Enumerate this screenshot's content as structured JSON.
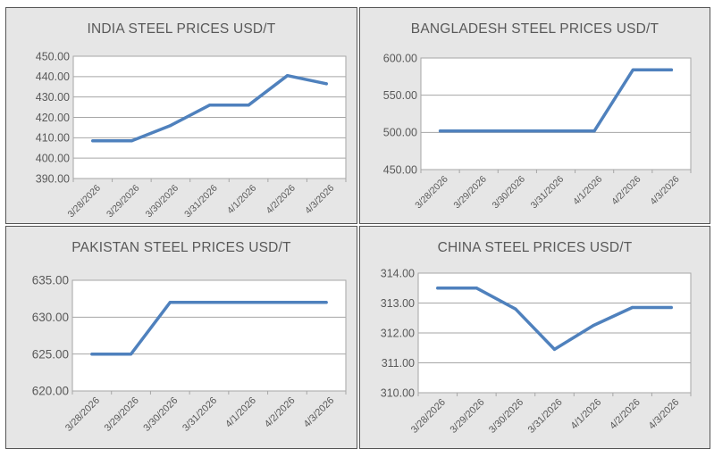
{
  "colors": {
    "line": "#4f81bd",
    "panel_bg": "#e6e6e6",
    "plot_bg": "#ffffff",
    "grid": "#a6a6a6",
    "text": "#595959",
    "border": "#555555"
  },
  "chart_data": [
    {
      "type": "line",
      "title": "INDIA STEEL PRICES USD/T",
      "categories": [
        "3/28/2026",
        "3/29/2026",
        "3/30/2026",
        "3/31/2026",
        "4/1/2026",
        "4/2/2026",
        "4/3/2026"
      ],
      "values": [
        408.5,
        408.5,
        416,
        426,
        426,
        440.5,
        436.5
      ],
      "ylim": [
        390,
        450
      ],
      "yticks": [
        "390.00",
        "400.00",
        "410.00",
        "420.00",
        "430.00",
        "440.00",
        "450.00"
      ],
      "grid": true,
      "legend": "none"
    },
    {
      "type": "line",
      "title": "BANGLADESH STEEL PRICES USD/T",
      "categories": [
        "3/28/2026",
        "3/29/2026",
        "3/30/2026",
        "3/31/2026",
        "4/1/2026",
        "4/2/2026",
        "4/3/2026"
      ],
      "values": [
        502,
        502,
        502,
        502,
        502,
        584,
        584
      ],
      "ylim": [
        450,
        600
      ],
      "yticks": [
        "450.00",
        "500.00",
        "550.00",
        "600.00"
      ],
      "grid": true,
      "legend": "none"
    },
    {
      "type": "line",
      "title": "PAKISTAN STEEL PRICES USD/T",
      "categories": [
        "3/28/2026",
        "3/29/2026",
        "3/30/2026",
        "3/31/2026",
        "4/1/2026",
        "4/2/2026",
        "4/3/2026"
      ],
      "values": [
        625,
        625,
        632,
        632,
        632,
        632,
        632
      ],
      "ylim": [
        620,
        635
      ],
      "yticks": [
        "620.00",
        "625.00",
        "630.00",
        "635.00"
      ],
      "grid": true,
      "legend": "none"
    },
    {
      "type": "line",
      "title": "CHINA STEEL PRICES USD/T",
      "categories": [
        "3/28/2026",
        "3/29/2026",
        "3/30/2026",
        "3/31/2026",
        "4/1/2026",
        "4/2/2026",
        "4/3/2026"
      ],
      "values": [
        313.5,
        313.5,
        312.8,
        311.45,
        312.25,
        312.85,
        312.85
      ],
      "ylim": [
        310,
        314
      ],
      "yticks": [
        "310.00",
        "311.00",
        "312.00",
        "313.00",
        "314.00"
      ],
      "grid": true,
      "legend": "none"
    }
  ]
}
